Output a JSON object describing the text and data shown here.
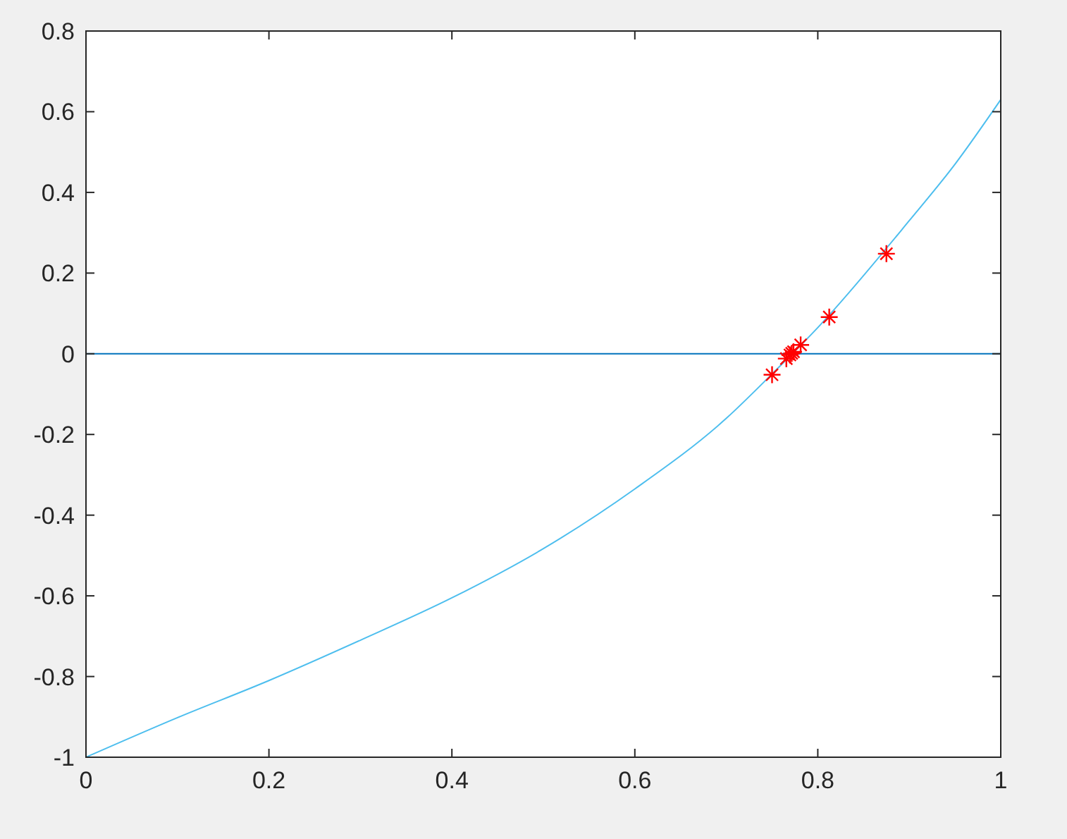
{
  "chart_data": {
    "type": "line",
    "xlim": [
      0,
      1
    ],
    "ylim": [
      -1,
      0.8
    ],
    "xticks": [
      0,
      0.2,
      0.4,
      0.6,
      0.8,
      1
    ],
    "yticks": [
      -1,
      -0.8,
      -0.6,
      -0.4,
      -0.2,
      0,
      0.2,
      0.4,
      0.6,
      0.8
    ],
    "grid": false,
    "series": [
      {
        "color": "#4dbeee",
        "x": [
          0,
          0.1,
          0.2,
          0.3,
          0.4,
          0.5,
          0.6,
          0.7,
          0.75,
          0.8,
          0.9,
          0.95,
          1
        ],
        "values": [
          -1,
          -0.902,
          -0.81,
          -0.71,
          -0.605,
          -0.483,
          -0.335,
          -0.16,
          -0.05,
          0.065,
          0.33,
          0.47,
          0.63
        ]
      },
      {
        "type": "scatter",
        "marker": "cross",
        "color": "#ff0000",
        "x": [
          0.75,
          0.875,
          0.8125,
          0.78125,
          0.765625,
          0.7734375,
          0.76953125,
          0.771484
        ],
        "values": [
          -0.052,
          0.248,
          0.091,
          0.022,
          -0.012,
          0.005,
          -0.003,
          0.001
        ]
      }
    ],
    "ref_lines": [
      {
        "axis": "y",
        "value": 0,
        "color": "#0072bd"
      }
    ]
  }
}
